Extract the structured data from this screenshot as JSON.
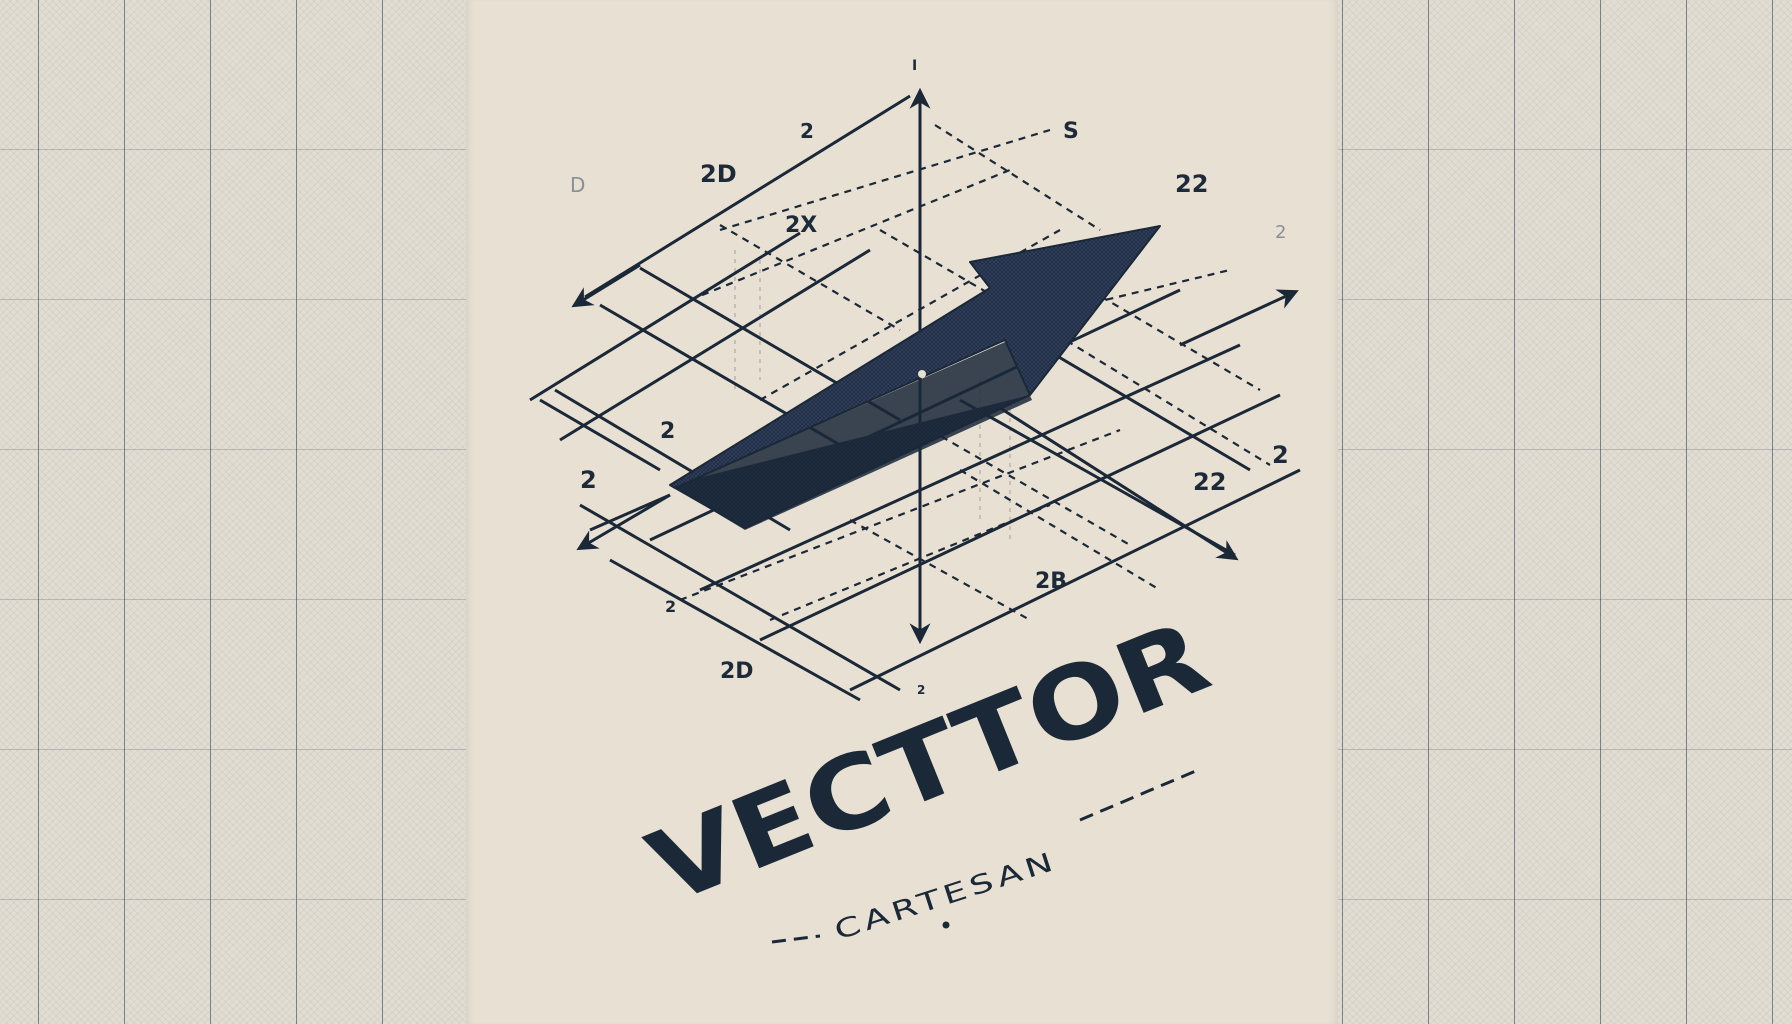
{
  "logo": {
    "title": "VECTTOR",
    "subtitle": "CARTESAN"
  },
  "grid_labels": [
    "D",
    "I",
    "2",
    "S",
    "2D",
    "2X",
    "22",
    "2",
    "2",
    "2",
    "2",
    "22",
    "2B",
    "2",
    "2D",
    "2"
  ],
  "colors": {
    "ink": "#1a2838",
    "panel": "#e8e1d3",
    "backdrop": "#e2ddd2",
    "faint_label": "#8a8f96"
  }
}
